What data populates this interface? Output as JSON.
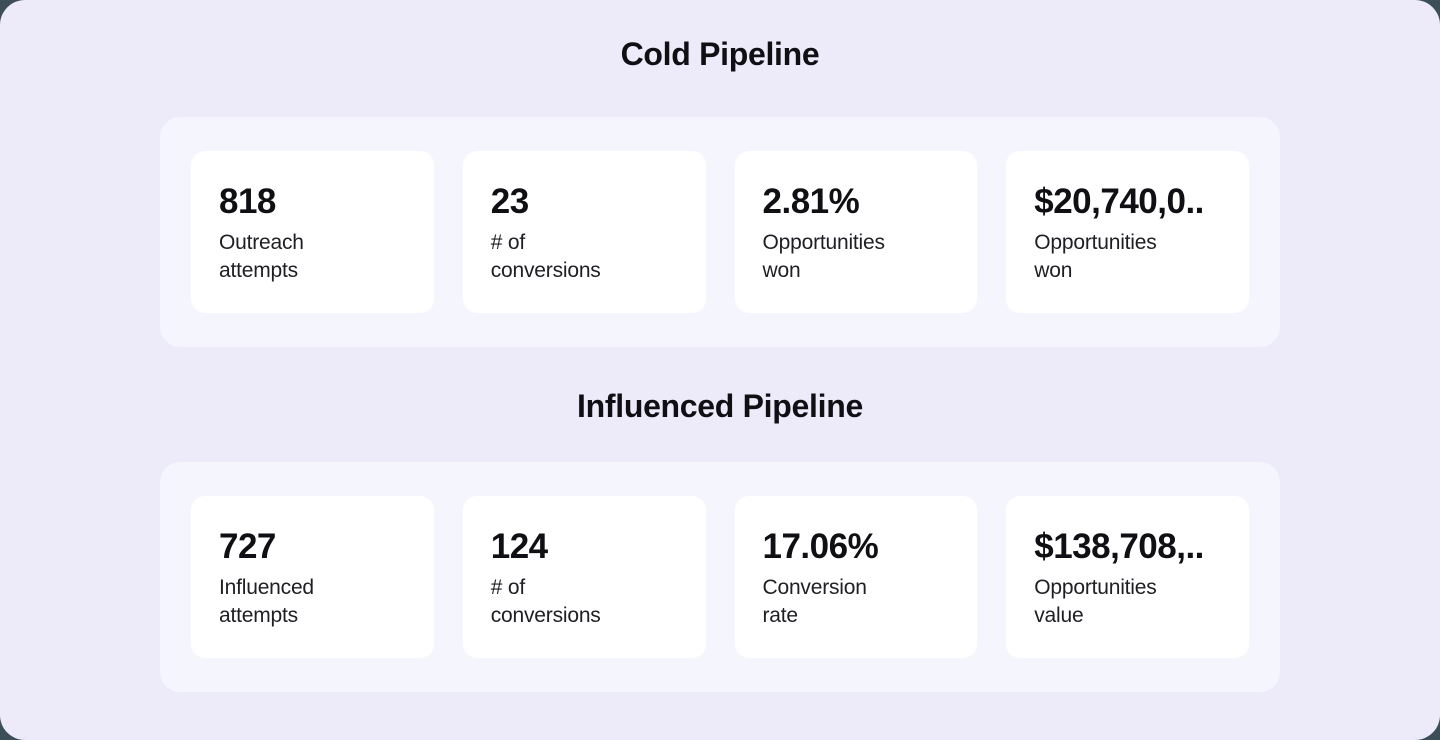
{
  "page": {
    "backdrop_color": "#3C4E57",
    "frame_color": "#FFFFFF",
    "container_color": "#EDEAFA",
    "panel_color": "#F5F5FD",
    "card_color": "#FFFFFF",
    "text_color": "#0F0F14"
  },
  "sections": [
    {
      "title": "Cold Pipeline",
      "cards": [
        {
          "value": "818",
          "label": "Outreach\nattempts"
        },
        {
          "value": "23",
          "label": "# of\nconversions"
        },
        {
          "value": "2.81%",
          "label": "Opportunities\nwon"
        },
        {
          "value": "$20,740,0..",
          "label": "Opportunities\nwon"
        }
      ]
    },
    {
      "title": "Influenced Pipeline",
      "cards": [
        {
          "value": "727",
          "label": "Influenced\nattempts"
        },
        {
          "value": "124",
          "label": "# of\nconversions"
        },
        {
          "value": "17.06%",
          "label": "Conversion\nrate"
        },
        {
          "value": "$138,708,..",
          "label": "Opportunities\nvalue"
        }
      ]
    }
  ]
}
